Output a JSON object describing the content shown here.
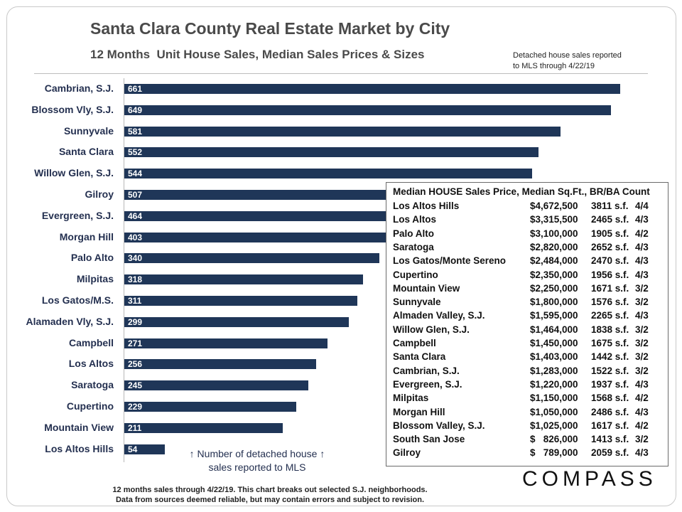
{
  "chart_data": {
    "type": "bar",
    "orientation": "horizontal",
    "title": "Santa Clara County Real Estate Market by City",
    "subtitle": "12 Months  Unit House Sales, Median Sales Prices & Sizes",
    "note": [
      "Detached house sales reported",
      "to MLS through 4/22/19"
    ],
    "categories": [
      "Cambrian, S.J.",
      "Blossom Vly, S.J.",
      "Sunnyvale",
      "Santa Clara",
      "Willow Glen, S.J.",
      "Gilroy",
      "Evergreen, S.J.",
      "Morgan Hill",
      "Palo Alto",
      "Milpitas",
      "Los Gatos/M.S.",
      "Alamaden Vly, S.J.",
      "Campbell",
      "Los Altos",
      "Saratoga",
      "Cupertino",
      "Mountain View",
      "Los Altos Hills"
    ],
    "values": [
      661,
      649,
      581,
      552,
      544,
      507,
      464,
      403,
      340,
      318,
      311,
      299,
      271,
      256,
      245,
      229,
      211,
      54
    ],
    "xlim": [
      0,
      700
    ],
    "xlabel": [
      "↑ Number of detached house ↑",
      "sales reported to MLS"
    ],
    "bar_color": "#1f3658"
  },
  "median_table": {
    "title": "Median HOUSE Sales Price, Median Sq.Ft., BR/BA Count",
    "rows": [
      {
        "city": "Los Altos Hills",
        "price": "$4,672,500",
        "sqft": "3811 s.f.",
        "brba": "4/4"
      },
      {
        "city": "Los Altos",
        "price": "$3,315,500",
        "sqft": "2465 s.f.",
        "brba": "4/3"
      },
      {
        "city": "Palo Alto",
        "price": "$3,100,000",
        "sqft": "1905 s.f.",
        "brba": "4/2"
      },
      {
        "city": "Saratoga",
        "price": "$2,820,000",
        "sqft": "2652 s.f.",
        "brba": "4/3"
      },
      {
        "city": "Los Gatos/Monte Sereno",
        "price": "$2,484,000",
        "sqft": "2470 s.f.",
        "brba": "4/3"
      },
      {
        "city": "Cupertino",
        "price": "$2,350,000",
        "sqft": "1956 s.f.",
        "brba": "4/3"
      },
      {
        "city": "Mountain View",
        "price": "$2,250,000",
        "sqft": "1671 s.f.",
        "brba": "3/2"
      },
      {
        "city": "Sunnyvale",
        "price": "$1,800,000",
        "sqft": "1576 s.f.",
        "brba": "3/2"
      },
      {
        "city": "Almaden Valley, S.J.",
        "price": "$1,595,000",
        "sqft": "2265 s.f.",
        "brba": "4/3"
      },
      {
        "city": "Willow Glen, S.J.",
        "price": "$1,464,000",
        "sqft": "1838 s.f.",
        "brba": "3/2"
      },
      {
        "city": "Campbell",
        "price": "$1,450,000",
        "sqft": "1675 s.f.",
        "brba": "3/2"
      },
      {
        "city": "Santa Clara",
        "price": "$1,403,000",
        "sqft": "1442 s.f.",
        "brba": "3/2"
      },
      {
        "city": "Cambrian, S.J.",
        "price": "$1,283,000",
        "sqft": "1522 s.f.",
        "brba": "3/2"
      },
      {
        "city": "Evergreen, S.J.",
        "price": "$1,220,000",
        "sqft": "1937 s.f.",
        "brba": "4/3"
      },
      {
        "city": "Milpitas",
        "price": "$1,150,000",
        "sqft": "1568 s.f.",
        "brba": "4/2"
      },
      {
        "city": "Morgan Hill",
        "price": "$1,050,000",
        "sqft": "2486 s.f.",
        "brba": "4/3"
      },
      {
        "city": "Blossom Valley, S.J.",
        "price": "$1,025,000",
        "sqft": "1617 s.f.",
        "brba": "4/2"
      },
      {
        "city": "South San Jose",
        "price": "$   826,000",
        "sqft": "1413 s.f.",
        "brba": "3/2"
      },
      {
        "city": "Gilroy",
        "price": "$   789,000",
        "sqft": "2059 s.f.",
        "brba": "4/3"
      }
    ]
  },
  "footer": [
    "12 months sales through 4/22/19. This chart breaks out selected S.J. neighborhoods.",
    "Data from sources deemed reliable, but may contain errors and subject to revision."
  ],
  "logo": "COMPASS"
}
